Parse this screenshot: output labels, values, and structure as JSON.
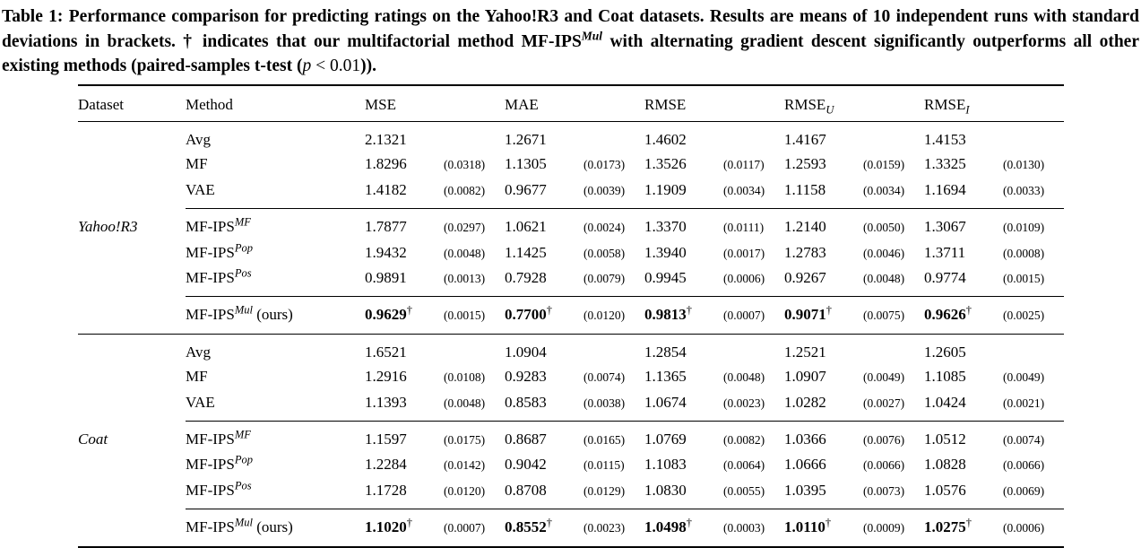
{
  "caption": {
    "label": "Table 1:",
    "pre": " Performance comparison for predicting ratings on the Yahoo!R3 and Coat datasets. Results are means of 10 independent runs with standard deviations in brackets. † indicates that our multifactorial method MF-IPS",
    "method_sup": "Mul",
    "mid": " with alternating gradient descent significantly outperforms all other existing methods (paired-samples t-test (",
    "p_symbol": "p",
    "math": " < 0.01",
    "post": "))."
  },
  "table": {
    "dagger_symbol": "†",
    "header": {
      "dataset": "Dataset",
      "method": "Method",
      "mse": "MSE",
      "mae": "MAE",
      "rmse": "RMSE",
      "rmse_u": {
        "base": "RMSE",
        "sub": "U"
      },
      "rmse_i": {
        "base": "RMSE",
        "sub": "I"
      }
    },
    "sections": [
      {
        "dataset": "Yahoo!R3",
        "groups": [
          {
            "rows": [
              {
                "method": {
                  "base": "Avg",
                  "sup": "",
                  "suffix": ""
                },
                "bold": false,
                "dagger": false,
                "dataset_label": "",
                "metrics": [
                  {
                    "value": "2.1321",
                    "std": ""
                  },
                  {
                    "value": "1.2671",
                    "std": ""
                  },
                  {
                    "value": "1.4602",
                    "std": ""
                  },
                  {
                    "value": "1.4167",
                    "std": ""
                  },
                  {
                    "value": "1.4153",
                    "std": ""
                  }
                ]
              },
              {
                "method": {
                  "base": "MF",
                  "sup": "",
                  "suffix": ""
                },
                "bold": false,
                "dagger": false,
                "dataset_label": "",
                "metrics": [
                  {
                    "value": "1.8296",
                    "std": "(0.0318)"
                  },
                  {
                    "value": "1.1305",
                    "std": "(0.0173)"
                  },
                  {
                    "value": "1.3526",
                    "std": "(0.0117)"
                  },
                  {
                    "value": "1.2593",
                    "std": "(0.0159)"
                  },
                  {
                    "value": "1.3325",
                    "std": "(0.0130)"
                  }
                ]
              },
              {
                "method": {
                  "base": "VAE",
                  "sup": "",
                  "suffix": ""
                },
                "bold": false,
                "dagger": false,
                "dataset_label": "",
                "metrics": [
                  {
                    "value": "1.4182",
                    "std": "(0.0082)"
                  },
                  {
                    "value": "0.9677",
                    "std": "(0.0039)"
                  },
                  {
                    "value": "1.1909",
                    "std": "(0.0034)"
                  },
                  {
                    "value": "1.1158",
                    "std": "(0.0034)"
                  },
                  {
                    "value": "1.1694",
                    "std": "(0.0033)"
                  }
                ]
              }
            ]
          },
          {
            "rows": [
              {
                "method": {
                  "base": "MF-IPS",
                  "sup": "MF",
                  "suffix": ""
                },
                "bold": false,
                "dagger": false,
                "dataset_label": "Yahoo!R3",
                "metrics": [
                  {
                    "value": "1.7877",
                    "std": "(0.0297)"
                  },
                  {
                    "value": "1.0621",
                    "std": "(0.0024)"
                  },
                  {
                    "value": "1.3370",
                    "std": "(0.0111)"
                  },
                  {
                    "value": "1.2140",
                    "std": "(0.0050)"
                  },
                  {
                    "value": "1.3067",
                    "std": "(0.0109)"
                  }
                ]
              },
              {
                "method": {
                  "base": "MF-IPS",
                  "sup": "Pop",
                  "suffix": ""
                },
                "bold": false,
                "dagger": false,
                "dataset_label": "",
                "metrics": [
                  {
                    "value": "1.9432",
                    "std": "(0.0048)"
                  },
                  {
                    "value": "1.1425",
                    "std": "(0.0058)"
                  },
                  {
                    "value": "1.3940",
                    "std": "(0.0017)"
                  },
                  {
                    "value": "1.2783",
                    "std": "(0.0046)"
                  },
                  {
                    "value": "1.3711",
                    "std": "(0.0008)"
                  }
                ]
              },
              {
                "method": {
                  "base": "MF-IPS",
                  "sup": "Pos",
                  "suffix": ""
                },
                "bold": false,
                "dagger": false,
                "dataset_label": "",
                "metrics": [
                  {
                    "value": "0.9891",
                    "std": "(0.0013)"
                  },
                  {
                    "value": "0.7928",
                    "std": "(0.0079)"
                  },
                  {
                    "value": "0.9945",
                    "std": "(0.0006)"
                  },
                  {
                    "value": "0.9267",
                    "std": "(0.0048)"
                  },
                  {
                    "value": "0.9774",
                    "std": "(0.0015)"
                  }
                ]
              }
            ]
          },
          {
            "rows": [
              {
                "method": {
                  "base": "MF-IPS",
                  "sup": "Mul",
                  "suffix": " (ours)"
                },
                "bold": true,
                "dagger": true,
                "dataset_label": "",
                "metrics": [
                  {
                    "value": "0.9629",
                    "std": "(0.0015)"
                  },
                  {
                    "value": "0.7700",
                    "std": "(0.0120)"
                  },
                  {
                    "value": "0.9813",
                    "std": "(0.0007)"
                  },
                  {
                    "value": "0.9071",
                    "std": "(0.0075)"
                  },
                  {
                    "value": "0.9626",
                    "std": "(0.0025)"
                  }
                ]
              }
            ]
          }
        ]
      },
      {
        "dataset": "Coat",
        "groups": [
          {
            "rows": [
              {
                "method": {
                  "base": "Avg",
                  "sup": "",
                  "suffix": ""
                },
                "bold": false,
                "dagger": false,
                "dataset_label": "",
                "metrics": [
                  {
                    "value": "1.6521",
                    "std": ""
                  },
                  {
                    "value": "1.0904",
                    "std": ""
                  },
                  {
                    "value": "1.2854",
                    "std": ""
                  },
                  {
                    "value": "1.2521",
                    "std": ""
                  },
                  {
                    "value": "1.2605",
                    "std": ""
                  }
                ]
              },
              {
                "method": {
                  "base": "MF",
                  "sup": "",
                  "suffix": ""
                },
                "bold": false,
                "dagger": false,
                "dataset_label": "",
                "metrics": [
                  {
                    "value": "1.2916",
                    "std": "(0.0108)"
                  },
                  {
                    "value": "0.9283",
                    "std": "(0.0074)"
                  },
                  {
                    "value": "1.1365",
                    "std": "(0.0048)"
                  },
                  {
                    "value": "1.0907",
                    "std": "(0.0049)"
                  },
                  {
                    "value": "1.1085",
                    "std": "(0.0049)"
                  }
                ]
              },
              {
                "method": {
                  "base": "VAE",
                  "sup": "",
                  "suffix": ""
                },
                "bold": false,
                "dagger": false,
                "dataset_label": "",
                "metrics": [
                  {
                    "value": "1.1393",
                    "std": "(0.0048)"
                  },
                  {
                    "value": "0.8583",
                    "std": "(0.0038)"
                  },
                  {
                    "value": "1.0674",
                    "std": "(0.0023)"
                  },
                  {
                    "value": "1.0282",
                    "std": "(0.0027)"
                  },
                  {
                    "value": "1.0424",
                    "std": "(0.0021)"
                  }
                ]
              }
            ]
          },
          {
            "rows": [
              {
                "method": {
                  "base": "MF-IPS",
                  "sup": "MF",
                  "suffix": ""
                },
                "bold": false,
                "dagger": false,
                "dataset_label": "Coat",
                "metrics": [
                  {
                    "value": "1.1597",
                    "std": "(0.0175)"
                  },
                  {
                    "value": "0.8687",
                    "std": "(0.0165)"
                  },
                  {
                    "value": "1.0769",
                    "std": "(0.0082)"
                  },
                  {
                    "value": "1.0366",
                    "std": "(0.0076)"
                  },
                  {
                    "value": "1.0512",
                    "std": "(0.0074)"
                  }
                ]
              },
              {
                "method": {
                  "base": "MF-IPS",
                  "sup": "Pop",
                  "suffix": ""
                },
                "bold": false,
                "dagger": false,
                "dataset_label": "",
                "metrics": [
                  {
                    "value": "1.2284",
                    "std": "(0.0142)"
                  },
                  {
                    "value": "0.9042",
                    "std": "(0.0115)"
                  },
                  {
                    "value": "1.1083",
                    "std": "(0.0064)"
                  },
                  {
                    "value": "1.0666",
                    "std": "(0.0066)"
                  },
                  {
                    "value": "1.0828",
                    "std": "(0.0066)"
                  }
                ]
              },
              {
                "method": {
                  "base": "MF-IPS",
                  "sup": "Pos",
                  "suffix": ""
                },
                "bold": false,
                "dagger": false,
                "dataset_label": "",
                "metrics": [
                  {
                    "value": "1.1728",
                    "std": "(0.0120)"
                  },
                  {
                    "value": "0.8708",
                    "std": "(0.0129)"
                  },
                  {
                    "value": "1.0830",
                    "std": "(0.0055)"
                  },
                  {
                    "value": "1.0395",
                    "std": "(0.0073)"
                  },
                  {
                    "value": "1.0576",
                    "std": "(0.0069)"
                  }
                ]
              }
            ]
          },
          {
            "rows": [
              {
                "method": {
                  "base": "MF-IPS",
                  "sup": "Mul",
                  "suffix": " (ours)"
                },
                "bold": true,
                "dagger": true,
                "dataset_label": "",
                "metrics": [
                  {
                    "value": "1.1020",
                    "std": "(0.0007)"
                  },
                  {
                    "value": "0.8552",
                    "std": "(0.0023)"
                  },
                  {
                    "value": "1.0498",
                    "std": "(0.0003)"
                  },
                  {
                    "value": "1.0110",
                    "std": "(0.0009)"
                  },
                  {
                    "value": "1.0275",
                    "std": "(0.0006)"
                  }
                ]
              }
            ]
          }
        ]
      }
    ]
  }
}
